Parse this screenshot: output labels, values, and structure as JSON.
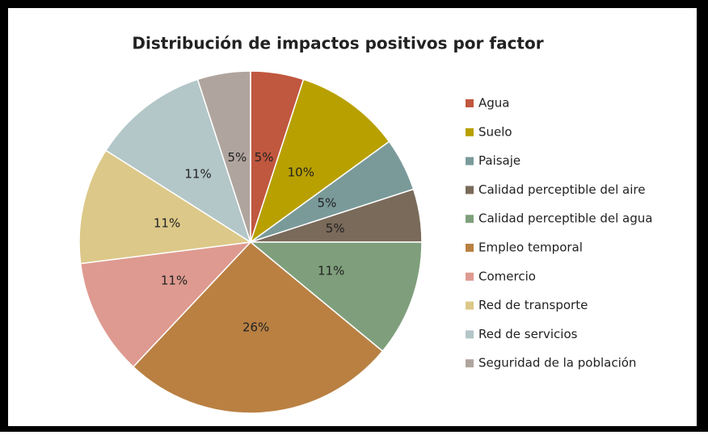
{
  "chart_data": {
    "type": "pie",
    "title": "Distribución de impactos positivos por factor",
    "categories": [
      "Agua",
      "Suelo",
      "Paisaje",
      "Calidad perceptible del aire",
      "Calidad perceptible del agua",
      "Empleo temporal",
      "Comercio",
      "Red de transporte",
      "Red de servicios",
      "Seguridad de la población"
    ],
    "values": [
      5,
      10,
      5,
      5,
      11,
      26,
      11,
      11,
      11,
      5
    ],
    "value_labels": [
      "5%",
      "10%",
      "5%",
      "5%",
      "11%",
      "26%",
      "11%",
      "11%",
      "11%",
      "5%"
    ],
    "colors": [
      "#c0573f",
      "#b8a000",
      "#7a9a9a",
      "#7a6a5a",
      "#7f9f7c",
      "#b98042",
      "#de9a90",
      "#dcc888",
      "#b3c6c8",
      "#b0a59e"
    ],
    "legend": "right"
  }
}
